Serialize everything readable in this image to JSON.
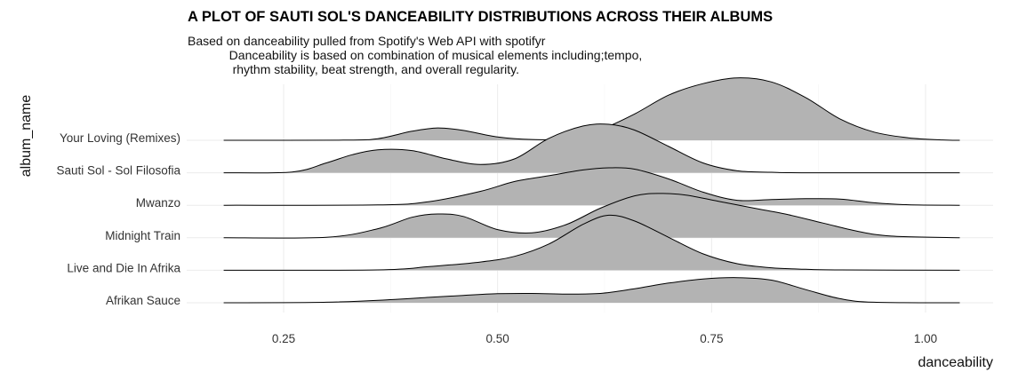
{
  "chart_data": {
    "type": "area",
    "chart_kind": "ridgeline-density",
    "title": "A PLOT OF SAUTI SOL'S DANCEABILITY DISTRIBUTIONS ACROSS THEIR ALBUMS",
    "subtitle_lines": [
      "Based on danceability pulled from Spotify's Web API with spotifyr",
      "            Danceability is based on combination of musical elements including;tempo,",
      "             rhythm stability, beat strength, and overall regularity."
    ],
    "xlabel": "danceability",
    "ylabel": "album_name",
    "xlim": [
      0.18,
      1.04
    ],
    "x_ticks": [
      "0.25",
      "0.50",
      "0.75",
      "1.00"
    ],
    "x_tick_values": [
      0.25,
      0.5,
      0.75,
      1.0
    ],
    "grid": true,
    "fill_color": "#b3b3b3",
    "line_color": "#000000",
    "categories": [
      "Afrikan Sauce",
      "Live and Die In Afrika",
      "Midnight Train",
      "Mwanzo",
      "Sauti Sol - Sol Filosofia",
      "Your Loving (Remixes)"
    ],
    "series": [
      {
        "name": "Afrikan Sauce",
        "x": [
          0.18,
          0.3,
          0.38,
          0.42,
          0.46,
          0.5,
          0.54,
          0.58,
          0.62,
          0.66,
          0.7,
          0.74,
          0.78,
          0.82,
          0.86,
          0.9,
          0.94,
          1.04
        ],
        "density": [
          0.0,
          0.03,
          0.2,
          0.33,
          0.45,
          0.55,
          0.57,
          0.53,
          0.57,
          0.85,
          1.2,
          1.45,
          1.53,
          1.38,
          0.8,
          0.25,
          0.03,
          0.0
        ]
      },
      {
        "name": "Live and Die In Afrika",
        "x": [
          0.18,
          0.36,
          0.42,
          0.48,
          0.52,
          0.56,
          0.6,
          0.63,
          0.66,
          0.7,
          0.74,
          0.78,
          0.82,
          0.86,
          0.9,
          1.04
        ],
        "density": [
          0.0,
          0.02,
          0.22,
          0.5,
          0.85,
          1.6,
          2.8,
          3.35,
          3.0,
          2.0,
          1.0,
          0.4,
          0.15,
          0.06,
          0.02,
          0.0
        ]
      },
      {
        "name": "Midnight Train",
        "x": [
          0.18,
          0.3,
          0.36,
          0.4,
          0.43,
          0.46,
          0.5,
          0.54,
          0.58,
          0.62,
          0.66,
          0.69,
          0.72,
          0.76,
          0.8,
          0.84,
          0.88,
          0.92,
          0.96,
          1.04
        ],
        "density": [
          0.0,
          0.03,
          0.55,
          1.25,
          1.45,
          1.3,
          0.5,
          0.3,
          0.8,
          1.8,
          2.55,
          2.7,
          2.6,
          2.2,
          1.8,
          1.4,
          0.9,
          0.4,
          0.1,
          0.0
        ]
      },
      {
        "name": "Mwanzo",
        "x": [
          0.18,
          0.36,
          0.42,
          0.48,
          0.52,
          0.56,
          0.6,
          0.63,
          0.66,
          0.7,
          0.74,
          0.78,
          0.82,
          0.86,
          0.9,
          0.94,
          0.98,
          1.04
        ],
        "density": [
          0.0,
          0.02,
          0.22,
          0.85,
          1.45,
          1.8,
          2.15,
          2.28,
          2.2,
          1.6,
          0.8,
          0.3,
          0.35,
          0.4,
          0.38,
          0.15,
          0.03,
          0.0
        ]
      },
      {
        "name": "Sauti Sol - Sol Filosofia",
        "x": [
          0.18,
          0.26,
          0.3,
          0.33,
          0.36,
          0.4,
          0.44,
          0.48,
          0.52,
          0.56,
          0.6,
          0.63,
          0.66,
          0.7,
          0.74,
          0.78,
          0.82,
          0.86,
          1.04
        ],
        "density": [
          0.0,
          0.05,
          0.6,
          1.1,
          1.4,
          1.35,
          0.85,
          0.5,
          0.85,
          2.1,
          2.85,
          2.95,
          2.6,
          1.6,
          0.6,
          0.12,
          0.03,
          0.0,
          0.0
        ]
      },
      {
        "name": "Your Loving (Remixes)",
        "x": [
          0.18,
          0.32,
          0.36,
          0.4,
          0.43,
          0.46,
          0.5,
          0.54,
          0.58,
          0.62,
          0.66,
          0.7,
          0.74,
          0.78,
          0.82,
          0.86,
          0.9,
          0.94,
          0.98,
          1.02,
          1.04
        ],
        "density": [
          0.0,
          0.01,
          0.1,
          0.55,
          0.75,
          0.6,
          0.2,
          0.05,
          0.1,
          0.65,
          1.6,
          2.75,
          3.45,
          3.8,
          3.55,
          2.6,
          1.3,
          0.5,
          0.15,
          0.02,
          0.0
        ]
      }
    ]
  }
}
